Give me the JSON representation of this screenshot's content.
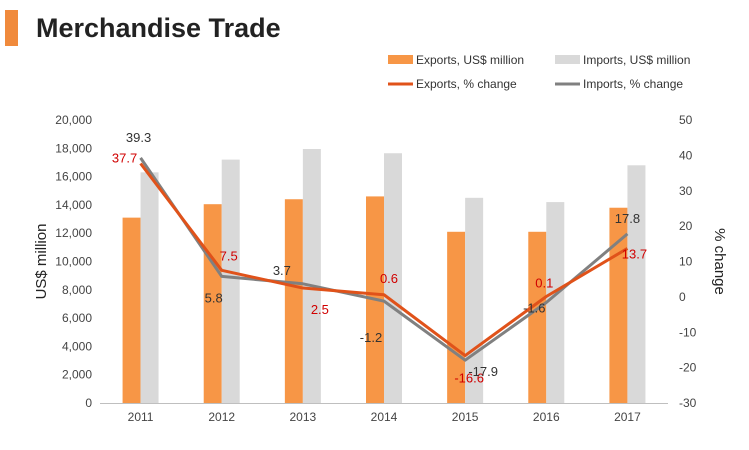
{
  "title": "Merchandise Trade",
  "chart_data": {
    "type": "bar",
    "title": "Merchandise Trade",
    "categories": [
      "2011",
      "2012",
      "2013",
      "2014",
      "2015",
      "2016",
      "2017"
    ],
    "series": [
      {
        "name": "Exports, US$ million",
        "kind": "bar",
        "axis": "left",
        "color": "#f79646",
        "values": [
          13100,
          14050,
          14400,
          14600,
          12100,
          12100,
          13800
        ]
      },
      {
        "name": "Imports, US$ million",
        "kind": "bar",
        "axis": "left",
        "color": "#d9d9d9",
        "values": [
          16300,
          17200,
          17950,
          17650,
          14500,
          14200,
          16800
        ]
      },
      {
        "name": "Exports, % change",
        "kind": "line",
        "axis": "right",
        "color": "#e0521a",
        "values": [
          37.7,
          7.5,
          2.5,
          0.6,
          -16.6,
          0.1,
          13.7
        ],
        "labels": [
          "37.7",
          "7.5",
          "2.5",
          "0.6",
          "-16.6",
          "0.1",
          "13.7"
        ],
        "label_color": "#d00000"
      },
      {
        "name": "Imports, % change",
        "kind": "line",
        "axis": "right",
        "color": "#808080",
        "values": [
          39.3,
          5.8,
          3.7,
          -1.2,
          -17.9,
          -1.6,
          17.8
        ],
        "labels": [
          "39.3",
          "5.8",
          "3.7",
          "-1.2",
          "-17.9",
          "-1.6",
          "17.8"
        ],
        "label_color": "#333333"
      }
    ],
    "y_left": {
      "label": "US$ million",
      "range": [
        0,
        20000
      ],
      "ticks": [
        "0",
        "2,000",
        "4,000",
        "6,000",
        "8,000",
        "10,000",
        "12,000",
        "14,000",
        "16,000",
        "18,000",
        "20,000"
      ]
    },
    "y_right": {
      "label": "% change",
      "range": [
        -30,
        50
      ],
      "ticks": [
        "-30",
        "-20",
        "-10",
        "0",
        "10",
        "20",
        "30",
        "40",
        "50"
      ]
    },
    "legend_position": "top-right",
    "grid": false
  }
}
